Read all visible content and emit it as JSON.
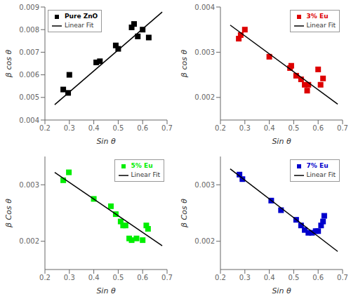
{
  "chart_data": [
    {
      "type": "scatter",
      "xlabel": "Sin θ",
      "ylabel": "β cos θ",
      "xlim": [
        0.2,
        0.7
      ],
      "ylim": [
        0.004,
        0.009
      ],
      "xticks": [
        0.2,
        0.3,
        0.4,
        0.5,
        0.6,
        0.7
      ],
      "yticks": [
        0.004,
        0.005,
        0.006,
        0.007,
        0.008,
        0.009
      ],
      "legend": "upper left",
      "grid": false,
      "series": [
        {
          "name": "Pure ZnO",
          "type": "scatter",
          "color": "black",
          "marker": "square",
          "x": [
            0.275,
            0.295,
            0.3,
            0.41,
            0.425,
            0.49,
            0.5,
            0.555,
            0.565,
            0.58,
            0.6,
            0.625
          ],
          "values": [
            0.00535,
            0.0052,
            0.006,
            0.00655,
            0.0066,
            0.0073,
            0.00715,
            0.0081,
            0.00825,
            0.0077,
            0.008,
            0.00765
          ]
        },
        {
          "name": "Linear Fit",
          "type": "line",
          "color": "black",
          "line_style": "solid",
          "x": [
            0.24,
            0.68
          ],
          "values": [
            0.00468,
            0.00878
          ]
        }
      ]
    },
    {
      "type": "scatter",
      "xlabel": "Sin θ",
      "ylabel": "β cos θ",
      "xlim": [
        0.2,
        0.7
      ],
      "ylim": [
        0.0015,
        0.004
      ],
      "xticks": [
        0.2,
        0.3,
        0.4,
        0.5,
        0.6,
        0.7
      ],
      "yticks": [
        0.002,
        0.003,
        0.004
      ],
      "legend": "upper right",
      "grid": false,
      "series": [
        {
          "name": "3% Eu",
          "type": "scatter",
          "color": "#dd0000",
          "marker": "square",
          "x": [
            0.275,
            0.283,
            0.3,
            0.4,
            0.485,
            0.49,
            0.51,
            0.53,
            0.545,
            0.555,
            0.56,
            0.6,
            0.61,
            0.62
          ],
          "values": [
            0.0033,
            0.00338,
            0.0035,
            0.0029,
            0.00265,
            0.0027,
            0.00248,
            0.0024,
            0.00228,
            0.00215,
            0.00228,
            0.00262,
            0.00228,
            0.00242
          ]
        },
        {
          "name": "Linear Fit",
          "type": "line",
          "color": "black",
          "line_style": "solid",
          "x": [
            0.24,
            0.68
          ],
          "values": [
            0.0036,
            0.00185
          ]
        }
      ]
    },
    {
      "type": "scatter",
      "xlabel": "Sin θ",
      "ylabel": "β Cos θ",
      "xlim": [
        0.2,
        0.7
      ],
      "ylim": [
        0.0015,
        0.0035
      ],
      "xticks": [
        0.2,
        0.3,
        0.4,
        0.5,
        0.6,
        0.7
      ],
      "yticks": [
        0.002,
        0.003
      ],
      "legend": "upper right",
      "grid": false,
      "series": [
        {
          "name": "5% Eu",
          "type": "scatter",
          "color": "#00ee00",
          "marker": "square",
          "x": [
            0.275,
            0.298,
            0.4,
            0.47,
            0.49,
            0.51,
            0.52,
            0.53,
            0.545,
            0.555,
            0.575,
            0.6,
            0.615,
            0.622
          ],
          "values": [
            0.00308,
            0.00322,
            0.00275,
            0.00262,
            0.00248,
            0.00235,
            0.00228,
            0.00228,
            0.00205,
            0.00202,
            0.00205,
            0.00202,
            0.00228,
            0.00222
          ]
        },
        {
          "name": "Linear Fit",
          "type": "line",
          "color": "black",
          "line_style": "solid",
          "x": [
            0.24,
            0.68
          ],
          "values": [
            0.00322,
            0.00192
          ]
        }
      ]
    },
    {
      "type": "scatter",
      "xlabel": "Sin θ",
      "ylabel": "β Cos θ",
      "xlim": [
        0.2,
        0.7
      ],
      "ylim": [
        0.0015,
        0.0035
      ],
      "xticks": [
        0.2,
        0.3,
        0.4,
        0.5,
        0.6,
        0.7
      ],
      "yticks": [
        0.002,
        0.003
      ],
      "legend": "upper right",
      "grid": false,
      "series": [
        {
          "name": "7% Eu",
          "type": "scatter",
          "color": "#0000cc",
          "marker": "square",
          "x": [
            0.278,
            0.29,
            0.408,
            0.448,
            0.51,
            0.53,
            0.545,
            0.56,
            0.575,
            0.59,
            0.6,
            0.612,
            0.62,
            0.625
          ],
          "values": [
            0.00318,
            0.0031,
            0.00272,
            0.00255,
            0.00238,
            0.00228,
            0.0022,
            0.00215,
            0.00215,
            0.00218,
            0.00218,
            0.00228,
            0.00235,
            0.00245
          ]
        },
        {
          "name": "Linear Fit",
          "type": "line",
          "color": "black",
          "line_style": "solid",
          "x": [
            0.24,
            0.68
          ],
          "values": [
            0.00328,
            0.00182
          ]
        }
      ]
    }
  ]
}
